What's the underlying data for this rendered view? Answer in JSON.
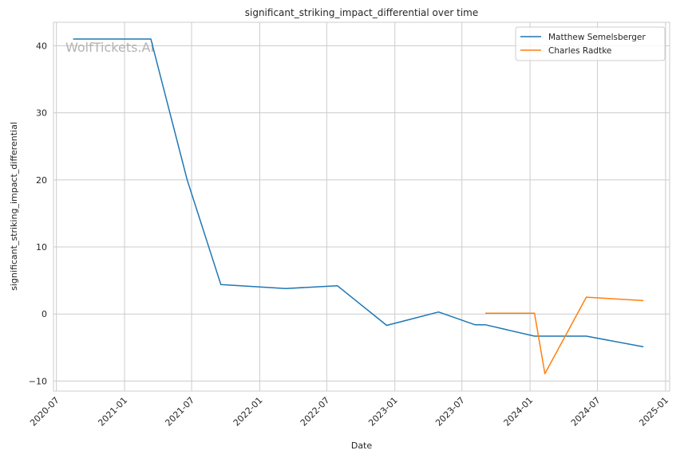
{
  "chart_data": {
    "type": "line",
    "title": "significant_striking_impact_differential over time",
    "xlabel": "Date",
    "ylabel": "significant_striking_impact_differential",
    "watermark": "WolfTickets.AI",
    "xlim": [
      "2020-06-23",
      "2025-01-12"
    ],
    "ylim": [
      -11.5,
      43.5
    ],
    "x_ticks": [
      {
        "date": "2020-07-01",
        "label": "2020-07"
      },
      {
        "date": "2021-01-01",
        "label": "2021-01"
      },
      {
        "date": "2021-07-01",
        "label": "2021-07"
      },
      {
        "date": "2022-01-01",
        "label": "2022-01"
      },
      {
        "date": "2022-07-01",
        "label": "2022-07"
      },
      {
        "date": "2023-01-01",
        "label": "2023-01"
      },
      {
        "date": "2023-07-01",
        "label": "2023-07"
      },
      {
        "date": "2024-01-01",
        "label": "2024-01"
      },
      {
        "date": "2024-07-01",
        "label": "2024-07"
      },
      {
        "date": "2025-01-01",
        "label": "2025-01"
      }
    ],
    "y_ticks": [
      -10,
      0,
      10,
      20,
      30,
      40
    ],
    "grid": true,
    "legend": "top-right",
    "series": [
      {
        "name": "Matthew Semelsberger",
        "color": "#1f77b4",
        "points": [
          {
            "x": "2020-08-15",
            "y": 41.0
          },
          {
            "x": "2021-03-13",
            "y": 41.0
          },
          {
            "x": "2021-06-19",
            "y": 20.0
          },
          {
            "x": "2021-09-18",
            "y": 4.4
          },
          {
            "x": "2022-03-12",
            "y": 3.8
          },
          {
            "x": "2022-07-30",
            "y": 4.2
          },
          {
            "x": "2022-12-10",
            "y": -1.7
          },
          {
            "x": "2023-04-29",
            "y": 0.3
          },
          {
            "x": "2023-08-05",
            "y": -1.6
          },
          {
            "x": "2023-09-02",
            "y": -1.6
          },
          {
            "x": "2024-01-13",
            "y": -3.3
          },
          {
            "x": "2024-06-01",
            "y": -3.3
          },
          {
            "x": "2024-11-02",
            "y": -4.9
          }
        ]
      },
      {
        "name": "Charles Radtke",
        "color": "#ff7f0e",
        "points": [
          {
            "x": "2023-09-02",
            "y": 0.1
          },
          {
            "x": "2024-01-13",
            "y": 0.1
          },
          {
            "x": "2024-02-10",
            "y": -8.9
          },
          {
            "x": "2024-06-01",
            "y": 2.5
          },
          {
            "x": "2024-11-02",
            "y": 2.0
          }
        ]
      }
    ]
  }
}
